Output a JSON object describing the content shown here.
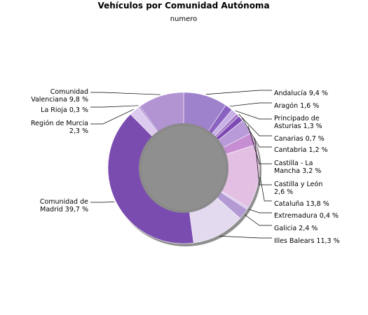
{
  "chart_data": {
    "type": "pie",
    "variant": "donut",
    "title": "Vehículos por Comunidad Autónoma",
    "subtitle": "numero",
    "slices": [
      {
        "name": "Andalucía",
        "value": 9.4,
        "label_lines": [
          "Andalucía 9,4 %"
        ],
        "color": "#9f82cc",
        "side": "right"
      },
      {
        "name": "Aragón",
        "value": 1.6,
        "label_lines": [
          "Aragón 1,6 %"
        ],
        "color": "#8a62c2",
        "side": "right"
      },
      {
        "name": "Principado de Asturias",
        "value": 1.3,
        "label_lines": [
          "Principado de",
          "Asturias 1,3 %"
        ],
        "color": "#c9b0e6",
        "side": "right"
      },
      {
        "name": "Canarias",
        "value": 0.7,
        "label_lines": [
          "Canarias 0,7 %"
        ],
        "color": "#a478c8",
        "side": "right"
      },
      {
        "name": "Cantabria",
        "value": 1.2,
        "label_lines": [
          "Cantabria 1,2 %"
        ],
        "color": "#7d4ab3",
        "side": "right"
      },
      {
        "name": "Castilla - La Mancha",
        "value": 3.2,
        "label_lines": [
          "Castilla - La",
          "Mancha 3,2 %"
        ],
        "color": "#b89ad9",
        "side": "right"
      },
      {
        "name": "Castilla y León",
        "value": 2.6,
        "label_lines": [
          "Castilla y León",
          "2,6 %"
        ],
        "color": "#c78dd3",
        "side": "right"
      },
      {
        "name": "Cataluña",
        "value": 13.8,
        "label_lines": [
          "Cataluña 13,8 %"
        ],
        "color": "#e3c0e3",
        "side": "right"
      },
      {
        "name": "Extremadura",
        "value": 0.4,
        "label_lines": [
          "Extremadura 0,4 %"
        ],
        "color": "#d3bde9",
        "side": "right"
      },
      {
        "name": "Galicia",
        "value": 2.4,
        "label_lines": [
          "Galicia 2,4 %"
        ],
        "color": "#b49ad4",
        "side": "right"
      },
      {
        "name": "Illes Balears",
        "value": 11.3,
        "label_lines": [
          "Illes Balears 11,3 %"
        ],
        "color": "#e4daf0",
        "side": "right"
      },
      {
        "name": "Comunidad de Madrid",
        "value": 39.7,
        "label_lines": [
          "Comunidad de",
          "Madrid 39,7 %"
        ],
        "color": "#7b4cb0",
        "side": "left"
      },
      {
        "name": "Región de Murcia",
        "value": 2.3,
        "label_lines": [
          "Región de Murcia",
          "2,3 %"
        ],
        "color": "#dccbee",
        "side": "left"
      },
      {
        "name": "La Rioja",
        "value": 0.3,
        "label_lines": [
          "La Rioja 0,3 %"
        ],
        "color": "#9a6fc6",
        "side": "left"
      },
      {
        "name": "Comunidad Valenciana",
        "value": 9.8,
        "label_lines": [
          "Comunidad",
          "Valenciana 9,8 %"
        ],
        "color": "#b294d2",
        "side": "left"
      }
    ]
  }
}
